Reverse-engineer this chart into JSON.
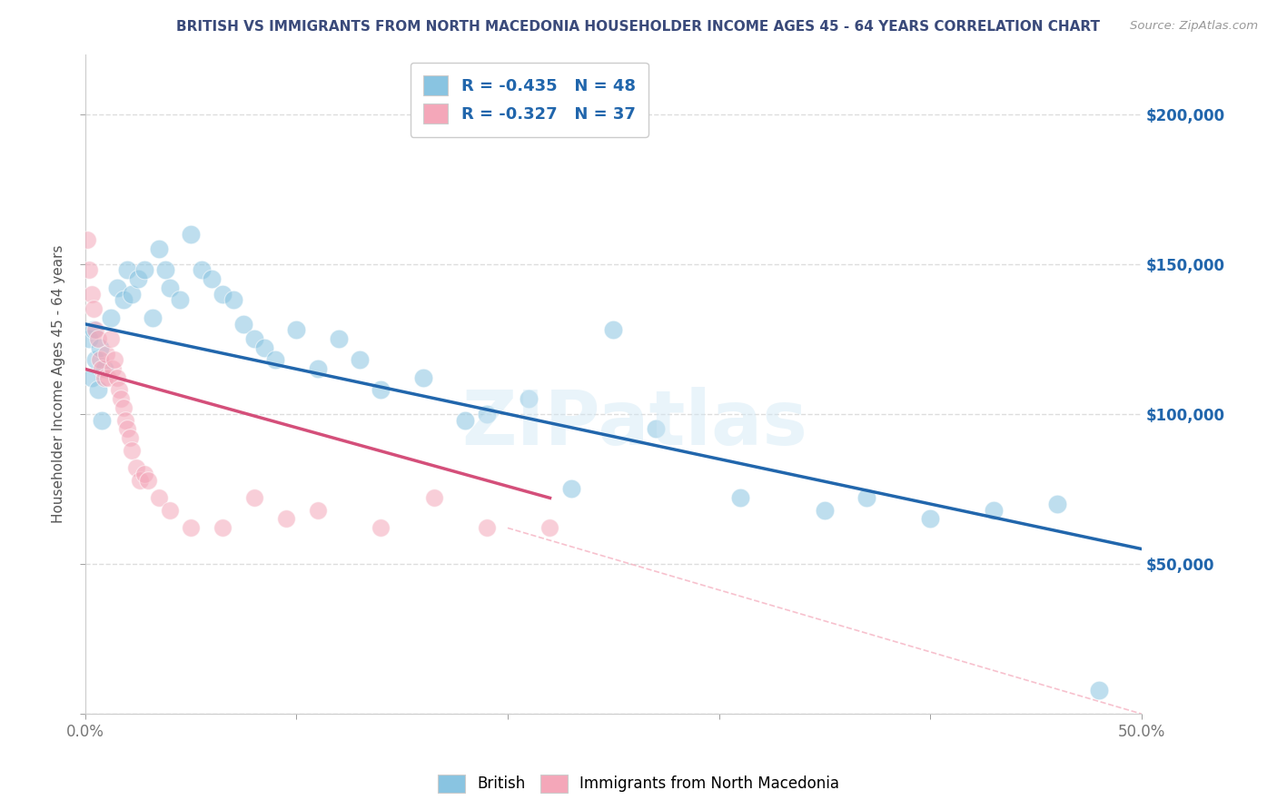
{
  "title": "BRITISH VS IMMIGRANTS FROM NORTH MACEDONIA HOUSEHOLDER INCOME AGES 45 - 64 YEARS CORRELATION CHART",
  "source": "Source: ZipAtlas.com",
  "ylabel": "Householder Income Ages 45 - 64 years",
  "xlim": [
    0.0,
    0.5
  ],
  "ylim": [
    0,
    220000
  ],
  "yticks": [
    0,
    50000,
    100000,
    150000,
    200000
  ],
  "ytick_labels": [
    "",
    "$50,000",
    "$100,000",
    "$150,000",
    "$200,000"
  ],
  "xticks": [
    0.0,
    0.1,
    0.2,
    0.3,
    0.4,
    0.5
  ],
  "xtick_labels": [
    "0.0%",
    "",
    "",
    "",
    "",
    "50.0%"
  ],
  "british_R": -0.435,
  "british_N": 48,
  "macedonian_R": -0.327,
  "macedonian_N": 37,
  "british_color": "#89c4e1",
  "macedonian_color": "#f4a7b9",
  "british_line_color": "#2166ac",
  "macedonian_line_color": "#d44f7a",
  "diagonal_line_color": "#f4a7b9",
  "background_color": "#ffffff",
  "grid_color": "#dddddd",
  "title_color": "#3a4a7a",
  "watermark": "ZIPatlas",
  "brit_line_x0": 0.0,
  "brit_line_y0": 130000,
  "brit_line_x1": 0.5,
  "brit_line_y1": 55000,
  "mac_line_x0": 0.0,
  "mac_line_y0": 115000,
  "mac_line_x1": 0.22,
  "mac_line_y1": 72000,
  "diag_line_x0": 0.2,
  "diag_line_y0": 62000,
  "diag_line_x1": 0.5,
  "diag_line_y1": 0,
  "british_x": [
    0.002,
    0.003,
    0.004,
    0.005,
    0.006,
    0.007,
    0.008,
    0.009,
    0.012,
    0.015,
    0.018,
    0.02,
    0.022,
    0.025,
    0.028,
    0.032,
    0.035,
    0.038,
    0.04,
    0.045,
    0.05,
    0.055,
    0.06,
    0.065,
    0.07,
    0.075,
    0.08,
    0.085,
    0.09,
    0.1,
    0.11,
    0.12,
    0.13,
    0.14,
    0.16,
    0.18,
    0.21,
    0.23,
    0.27,
    0.31,
    0.35,
    0.37,
    0.4,
    0.43,
    0.46,
    0.48,
    0.25,
    0.19
  ],
  "british_y": [
    125000,
    112000,
    128000,
    118000,
    108000,
    122000,
    98000,
    115000,
    132000,
    142000,
    138000,
    148000,
    140000,
    145000,
    148000,
    132000,
    155000,
    148000,
    142000,
    138000,
    160000,
    148000,
    145000,
    140000,
    138000,
    130000,
    125000,
    122000,
    118000,
    128000,
    115000,
    125000,
    118000,
    108000,
    112000,
    98000,
    105000,
    75000,
    95000,
    72000,
    68000,
    72000,
    65000,
    68000,
    70000,
    8000,
    128000,
    100000
  ],
  "macedonian_x": [
    0.001,
    0.002,
    0.003,
    0.004,
    0.005,
    0.006,
    0.007,
    0.008,
    0.009,
    0.01,
    0.011,
    0.012,
    0.013,
    0.014,
    0.015,
    0.016,
    0.017,
    0.018,
    0.019,
    0.02,
    0.021,
    0.022,
    0.024,
    0.026,
    0.028,
    0.03,
    0.035,
    0.04,
    0.05,
    0.065,
    0.08,
    0.095,
    0.11,
    0.14,
    0.165,
    0.19,
    0.22
  ],
  "macedonian_y": [
    158000,
    148000,
    140000,
    135000,
    128000,
    125000,
    118000,
    115000,
    112000,
    120000,
    112000,
    125000,
    115000,
    118000,
    112000,
    108000,
    105000,
    102000,
    98000,
    95000,
    92000,
    88000,
    82000,
    78000,
    80000,
    78000,
    72000,
    68000,
    62000,
    62000,
    72000,
    65000,
    68000,
    62000,
    72000,
    62000,
    62000
  ]
}
